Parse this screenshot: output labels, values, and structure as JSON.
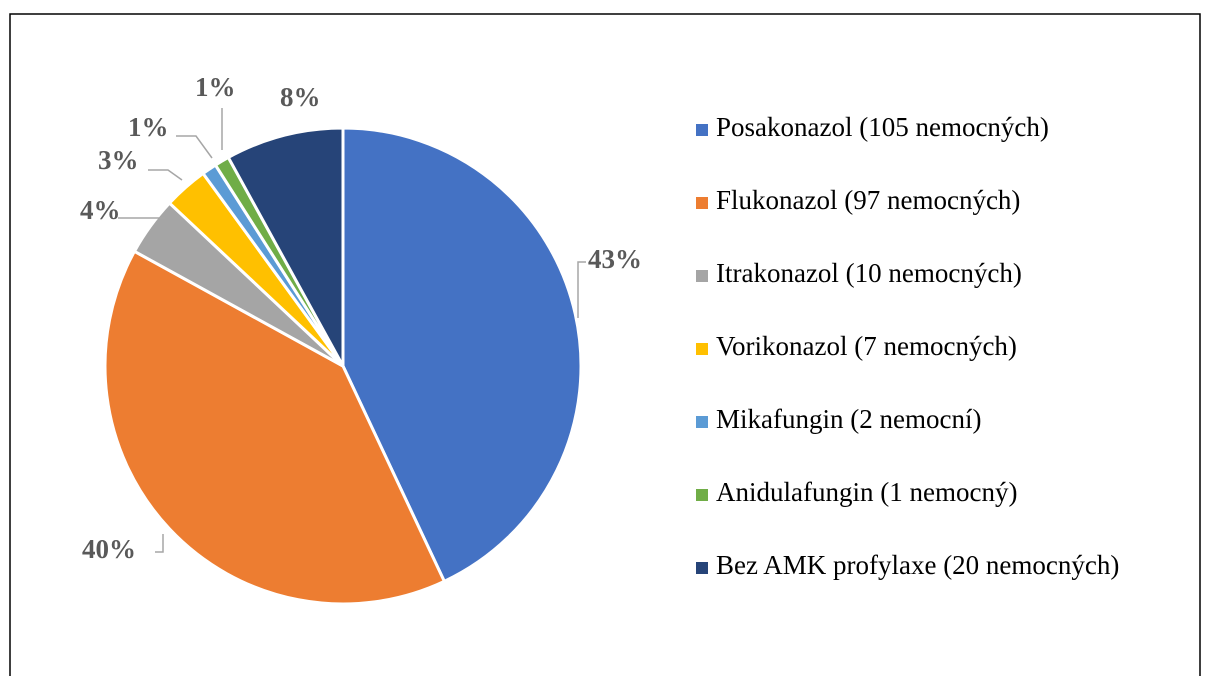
{
  "chart_data": {
    "type": "pie",
    "categories": [
      "Posakonazol (105 nemocných)",
      "Flukonazol (97 nemocných)",
      "Itrakonazol (10 nemocných)",
      "Vorikonazol (7 nemocných)",
      "Mikafungin (2 nemocní)",
      "Anidulafungin (1 nemocný)",
      "Bez AMK profylaxe (20 nemocných)"
    ],
    "values": [
      43,
      40,
      4,
      3,
      1,
      1,
      8
    ],
    "value_labels": [
      "43%",
      "40%",
      "4%",
      "3%",
      "1%",
      "1%",
      "8%"
    ],
    "colors": [
      "#4472c4",
      "#ed7d31",
      "#a5a5a5",
      "#ffc000",
      "#5b9bd5",
      "#70ad47",
      "#264478"
    ],
    "legend": "right"
  }
}
